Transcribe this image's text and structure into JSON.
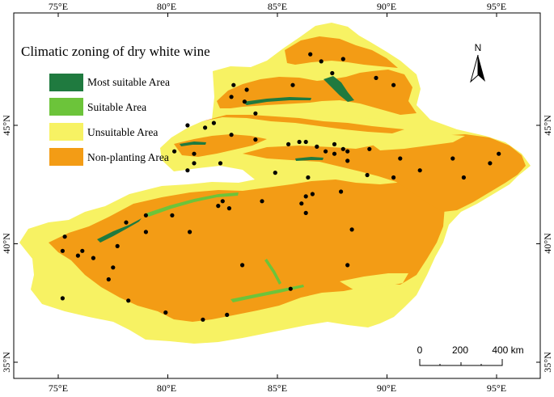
{
  "title": "Climatic zoning of dry white wine",
  "colors": {
    "most_suitable": "#1f7a3f",
    "suitable": "#6cc43a",
    "unsuitable": "#f7f263",
    "non_planting": "#f39c15",
    "station": "#000000"
  },
  "legend": [
    {
      "label": "Most suitable Area",
      "color": "#1f7a3f"
    },
    {
      "label": "Suitable Area",
      "color": "#6cc43a"
    },
    {
      "label": "Unsuitable Area",
      "color": "#f7f263"
    },
    {
      "label": "Non-planting Area",
      "color": "#f39c15"
    }
  ],
  "axes": {
    "lon_labels": [
      "75°E",
      "80°E",
      "85°E",
      "90°E",
      "95°E"
    ],
    "lat_labels": [
      "45°N",
      "40°N",
      "35°N"
    ]
  },
  "north_arrow": {
    "label": "N",
    "icon": "north-arrow-icon"
  },
  "scale_bar": {
    "labels": [
      "0",
      "200",
      "400 km"
    ]
  },
  "stations": [
    [
      86.5,
      48.0
    ],
    [
      87.0,
      47.7
    ],
    [
      88.0,
      47.8
    ],
    [
      87.5,
      47.2
    ],
    [
      89.5,
      47.0
    ],
    [
      90.3,
      46.7
    ],
    [
      83.0,
      46.7
    ],
    [
      83.6,
      46.5
    ],
    [
      85.7,
      46.7
    ],
    [
      82.9,
      46.2
    ],
    [
      83.5,
      46.0
    ],
    [
      84.0,
      45.5
    ],
    [
      80.9,
      45.0
    ],
    [
      81.7,
      44.9
    ],
    [
      82.1,
      45.1
    ],
    [
      82.9,
      44.6
    ],
    [
      84.0,
      44.4
    ],
    [
      85.5,
      44.2
    ],
    [
      86.0,
      44.3
    ],
    [
      86.3,
      44.3
    ],
    [
      86.8,
      44.1
    ],
    [
      87.2,
      43.9
    ],
    [
      87.6,
      44.2
    ],
    [
      87.6,
      43.8
    ],
    [
      88.0,
      44.0
    ],
    [
      88.2,
      43.5
    ],
    [
      88.2,
      43.9
    ],
    [
      89.2,
      44.0
    ],
    [
      90.6,
      43.6
    ],
    [
      91.5,
      43.1
    ],
    [
      93.0,
      43.6
    ],
    [
      94.7,
      43.4
    ],
    [
      95.1,
      43.8
    ],
    [
      93.5,
      42.8
    ],
    [
      90.3,
      42.8
    ],
    [
      89.1,
      42.9
    ],
    [
      81.2,
      43.4
    ],
    [
      80.3,
      43.9
    ],
    [
      80.9,
      43.1
    ],
    [
      81.2,
      43.8
    ],
    [
      82.4,
      43.4
    ],
    [
      84.9,
      43.0
    ],
    [
      86.4,
      42.8
    ],
    [
      86.6,
      42.1
    ],
    [
      86.3,
      42.0
    ],
    [
      87.9,
      42.2
    ],
    [
      86.1,
      41.7
    ],
    [
      86.3,
      41.3
    ],
    [
      84.3,
      41.8
    ],
    [
      82.5,
      41.8
    ],
    [
      82.3,
      41.6
    ],
    [
      82.8,
      41.5
    ],
    [
      80.2,
      41.2
    ],
    [
      79.0,
      41.2
    ],
    [
      78.1,
      40.9
    ],
    [
      79.0,
      40.5
    ],
    [
      81.0,
      40.5
    ],
    [
      77.7,
      39.9
    ],
    [
      76.1,
      39.7
    ],
    [
      75.2,
      39.7
    ],
    [
      75.9,
      39.5
    ],
    [
      76.6,
      39.4
    ],
    [
      77.5,
      39.0
    ],
    [
      77.3,
      38.5
    ],
    [
      83.4,
      39.1
    ],
    [
      88.2,
      39.1
    ],
    [
      85.6,
      38.1
    ],
    [
      78.2,
      37.6
    ],
    [
      79.9,
      37.1
    ],
    [
      81.6,
      36.8
    ],
    [
      82.7,
      37.0
    ],
    [
      75.2,
      37.7
    ],
    [
      75.3,
      40.3
    ],
    [
      88.4,
      40.6
    ]
  ]
}
